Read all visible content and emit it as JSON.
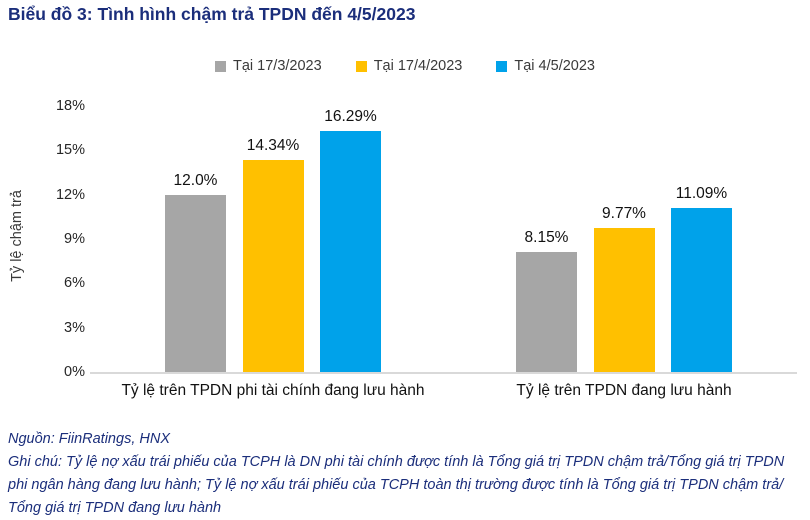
{
  "title": "Biểu đồ 3: Tình hình chậm trả TPDN đến 4/5/2023",
  "colors": {
    "title_text": "#1B2E7B",
    "footnote_text": "#1B2E7B",
    "axis_text": "#262626",
    "label_text": "#111111",
    "baseline": "#D9D9D9",
    "background": "#FFFFFF",
    "series_gray": "#A6A6A6",
    "series_yellow": "#FFC000",
    "series_blue": "#00A2EA"
  },
  "chart_data": {
    "type": "bar",
    "title": "Biểu đồ 3: Tình hình chậm trả TPDN đến 4/5/2023",
    "xlabel": "",
    "ylabel": "Tỷ lệ chậm trả",
    "ylim": [
      0,
      18
    ],
    "yticks": [
      "0%",
      "3%",
      "6%",
      "9%",
      "12%",
      "15%",
      "18%"
    ],
    "grid": false,
    "legend_position": "top-center",
    "categories": [
      "Tỷ lệ trên TPDN phi tài chính đang lưu hành",
      "Tỷ lệ trên TPDN đang lưu hành"
    ],
    "series": [
      {
        "name": "Tại 17/3/2023",
        "color": "#A6A6A6",
        "values": [
          12.0,
          8.15
        ],
        "labels": [
          "12.0%",
          "8.15%"
        ]
      },
      {
        "name": "Tại 17/4/2023",
        "color": "#FFC000",
        "values": [
          14.34,
          9.77
        ],
        "labels": [
          "14.34%",
          "9.77%"
        ]
      },
      {
        "name": "Tại 4/5/2023",
        "color": "#00A2EA",
        "values": [
          16.29,
          11.09
        ],
        "labels": [
          "16.29%",
          "11.09%"
        ]
      }
    ]
  },
  "footnote": {
    "lines": [
      "Nguồn: FiinRatings, HNX",
      "Ghi chú: Tỷ lệ nợ xấu trái phiếu của TCPH là DN phi tài chính được tính là Tổng giá trị TPDN chậm trả/Tổng giá trị TPDN",
      "phi ngân hàng đang lưu hành; Tỷ lệ nợ xấu trái phiếu của TCPH toàn thị trường được tính là Tổng giá trị TPDN chậm trả/",
      "Tổng giá trị TPDN đang lưu hành"
    ]
  }
}
